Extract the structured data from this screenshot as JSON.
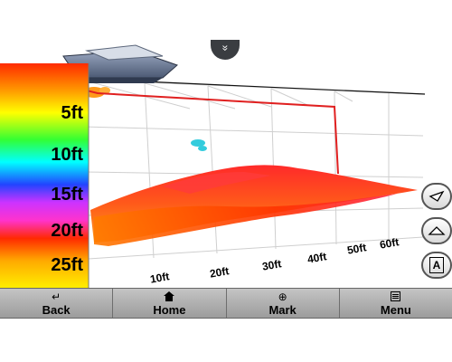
{
  "depth_scale": {
    "labels": [
      "5ft",
      "10ft",
      "15ft",
      "20ft",
      "25ft"
    ]
  },
  "range_scale": {
    "labels": [
      "10ft",
      "20ft",
      "30ft",
      "40ft",
      "50ft",
      "60ft"
    ]
  },
  "collapse_button": {
    "glyph": "»"
  },
  "side_buttons": [
    {
      "icon": "view-angle-low-icon"
    },
    {
      "icon": "view-angle-high-icon"
    },
    {
      "icon": "north-up-icon",
      "glyph": "A"
    }
  ],
  "toolbar": {
    "back": {
      "label": "Back",
      "icon": "back-arrow-icon",
      "glyph": "↵"
    },
    "home": {
      "label": "Home",
      "icon": "home-icon",
      "glyph": "⌂"
    },
    "mark": {
      "label": "Mark",
      "icon": "crosshair-icon",
      "glyph": "⊕"
    },
    "menu": {
      "label": "Menu",
      "icon": "menu-list-icon",
      "glyph": "☰"
    }
  },
  "colors": {
    "track_line": "#e02020",
    "toolbar_bg": "#b4b4b4",
    "fish_echo": "#33ccdd"
  }
}
